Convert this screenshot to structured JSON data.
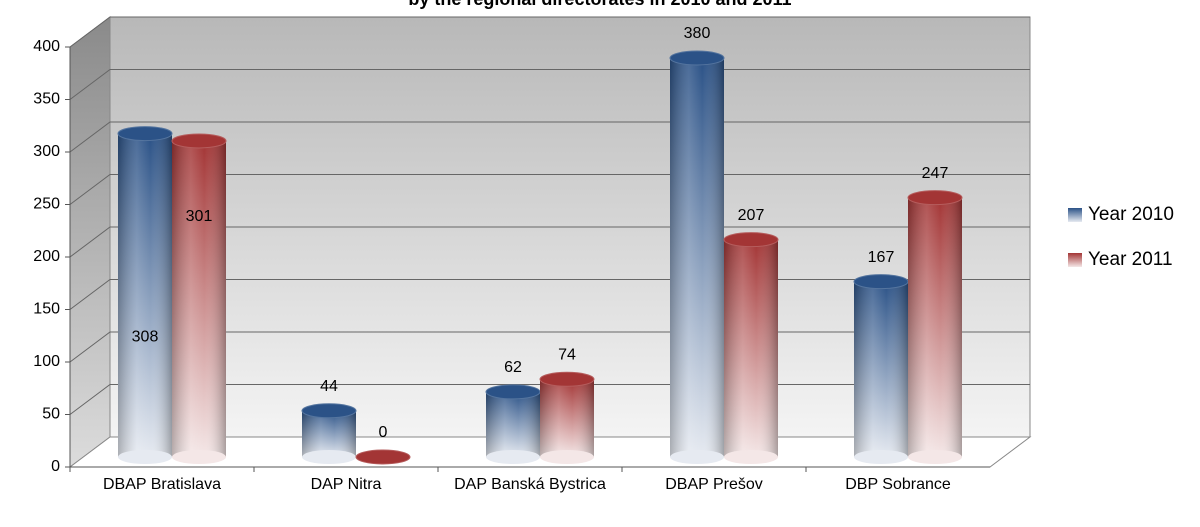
{
  "chart_data": {
    "type": "bar",
    "title": "by the regional directorates in 2010 and 2011",
    "categories": [
      "DBAP Bratislava",
      "DAP Nitra",
      "DAP Banská Bystrica",
      "DBAP Prešov",
      "DBP Sobrance"
    ],
    "series": [
      {
        "name": "Year 2010",
        "color": "#2b5287",
        "values": [
          308,
          44,
          62,
          380,
          167
        ]
      },
      {
        "name": "Year 2011",
        "color": "#a33535",
        "values": [
          301,
          0,
          74,
          207,
          247
        ]
      }
    ],
    "ylim": [
      0,
      400
    ],
    "yticks": [
      0,
      50,
      100,
      150,
      200,
      250,
      300,
      350,
      400
    ],
    "grid": true,
    "legend": "right"
  }
}
